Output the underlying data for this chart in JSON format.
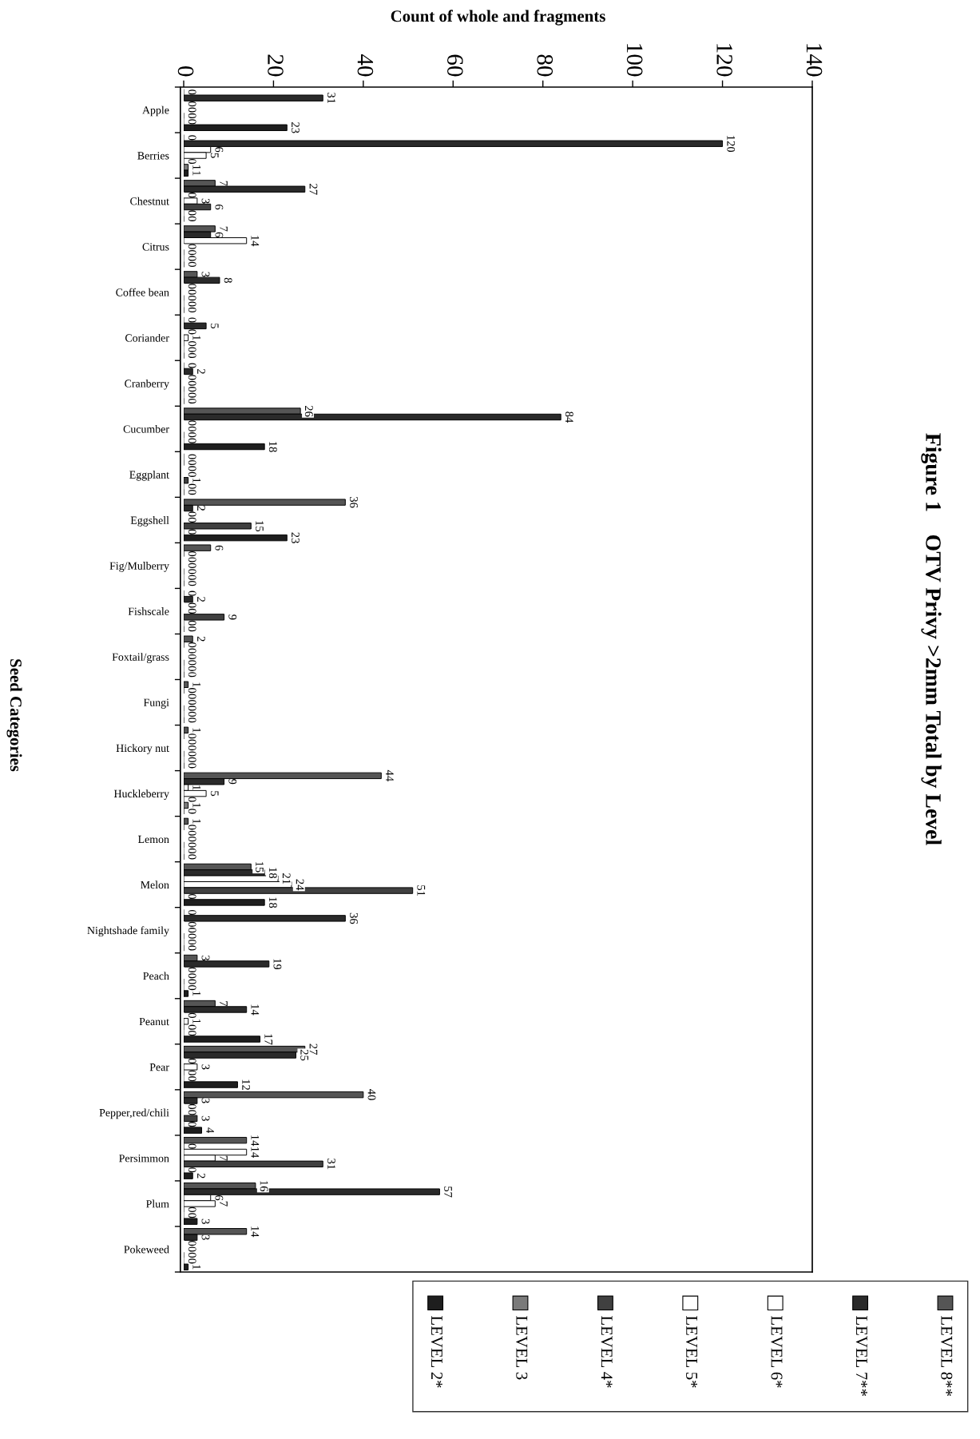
{
  "chart_data": {
    "type": "bar",
    "orientation": "horizontal",
    "title": "Figure 1    OTV Privy >2mm Total by Level",
    "xlabel": "Count of whole and fragments",
    "ylabel": "Seed Categories",
    "categories": [
      "Apple",
      "Berries",
      "Chestnut",
      "Citrus",
      "Coffee bean",
      "Coriander",
      "Cranberry",
      "Cucumber",
      "Eggplant",
      "Eggshell",
      "Fig/Mulberry",
      "Fishscale",
      "Foxtail/grass",
      "Fungi",
      "Hickory nut",
      "Huckleberry",
      "Lemon",
      "Melon",
      "Nightshade family",
      "Peach",
      "Peanut",
      "Pear",
      "Pepper,red/chili",
      "Persimmon",
      "Plum",
      "Pokeweed"
    ],
    "series": [
      {
        "name": "LEVEL 8**",
        "color": "#555555",
        "values": [
          0,
          0,
          7,
          7,
          3,
          0,
          0,
          26,
          0,
          36,
          6,
          0,
          2,
          1,
          1,
          44,
          1,
          15,
          0,
          3,
          7,
          27,
          40,
          14,
          16,
          14
        ]
      },
      {
        "name": "LEVEL 7**",
        "color": "#2a2a2a",
        "values": [
          31,
          120,
          27,
          6,
          8,
          5,
          2,
          84,
          0,
          2,
          0,
          2,
          0,
          0,
          0,
          9,
          0,
          18,
          36,
          19,
          14,
          25,
          3,
          0,
          57,
          3
        ]
      },
      {
        "name": "LEVEL 6*",
        "color": "#ffffff",
        "values": [
          0,
          6,
          0,
          14,
          0,
          0,
          0,
          0,
          0,
          0,
          0,
          0,
          0,
          0,
          0,
          1,
          0,
          21,
          0,
          0,
          0,
          0,
          0,
          14,
          6,
          0
        ]
      },
      {
        "name": "LEVEL 5*",
        "color": "#ffffff",
        "values": [
          0,
          5,
          3,
          0,
          0,
          1,
          0,
          0,
          0,
          0,
          0,
          0,
          0,
          0,
          0,
          5,
          0,
          24,
          0,
          0,
          1,
          3,
          0,
          7,
          7,
          0
        ]
      },
      {
        "name": "LEVEL 4*",
        "color": "#404040",
        "values": [
          0,
          0,
          6,
          0,
          0,
          0,
          0,
          0,
          1,
          15,
          0,
          9,
          0,
          0,
          0,
          0,
          0,
          51,
          0,
          0,
          0,
          0,
          3,
          31,
          0,
          0
        ]
      },
      {
        "name": "LEVEL 3",
        "color": "#7a7a7a",
        "values": [
          0,
          1,
          0,
          0,
          0,
          0,
          0,
          0,
          0,
          0,
          0,
          0,
          0,
          0,
          0,
          1,
          0,
          0,
          0,
          0,
          0,
          0,
          0,
          0,
          0,
          0
        ]
      },
      {
        "name": "LEVEL 2*",
        "color": "#1e1e1e",
        "values": [
          23,
          1,
          0,
          0,
          0,
          0,
          0,
          18,
          0,
          23,
          0,
          0,
          0,
          0,
          0,
          0,
          0,
          18,
          0,
          1,
          17,
          12,
          4,
          2,
          3,
          1
        ]
      }
    ],
    "xlim": [
      0,
      140
    ],
    "xticks": [
      0,
      20,
      40,
      60,
      80,
      100,
      120,
      140
    ],
    "data_labels": true,
    "legend": "bottom right"
  }
}
